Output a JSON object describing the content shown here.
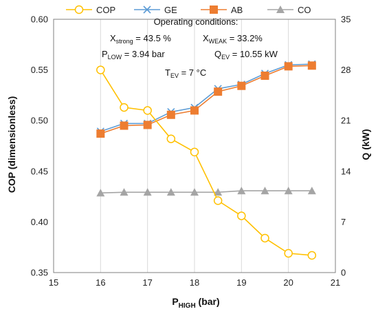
{
  "chart_data": {
    "type": "line",
    "x": [
      16,
      16.5,
      17,
      17.5,
      18,
      18.5,
      19,
      19.5,
      20,
      20.5
    ],
    "xlabel": {
      "main": "P",
      "sub": "HIGH",
      "tail": " (bar)"
    },
    "ylabel_left": "COP (dimensionless)",
    "ylabel_right": "Q (kW)",
    "xlim": [
      15,
      21
    ],
    "xticks": [
      "15",
      "16",
      "17",
      "18",
      "19",
      "20",
      "21"
    ],
    "ylim_left": [
      0.35,
      0.6
    ],
    "yticks_left": [
      "0.35",
      "0.40",
      "0.45",
      "0.50",
      "0.55",
      "0.60"
    ],
    "ylim_right": [
      0,
      35
    ],
    "yticks_right": [
      "0",
      "7",
      "14",
      "21",
      "28",
      "35"
    ],
    "series": [
      {
        "name": "COP",
        "axis": "left",
        "color": "#FFC000",
        "marker": "circle-open",
        "values": [
          0.55,
          0.513,
          0.51,
          0.482,
          0.469,
          0.421,
          0.406,
          0.384,
          0.369,
          0.367
        ]
      },
      {
        "name": "GE",
        "axis": "right",
        "color": "#5B9BD5",
        "marker": "x",
        "values": [
          19.5,
          20.6,
          20.6,
          22.2,
          22.8,
          25.4,
          26.0,
          27.5,
          28.7,
          28.8
        ]
      },
      {
        "name": "AB",
        "axis": "right",
        "color": "#ED7D31",
        "marker": "square",
        "values": [
          19.2,
          20.3,
          20.4,
          21.8,
          22.4,
          25.0,
          25.8,
          27.2,
          28.5,
          28.6
        ]
      },
      {
        "name": "CO",
        "axis": "right",
        "color": "#A5A5A5",
        "marker": "triangle",
        "values": [
          11.0,
          11.1,
          11.1,
          11.1,
          11.1,
          11.1,
          11.3,
          11.3,
          11.3,
          11.3
        ]
      }
    ],
    "grid": "vertical",
    "legend_placement": "top"
  },
  "annotations": {
    "title": "Operating conditions:",
    "xstrong": {
      "main": "X",
      "sub": "strong",
      "tail": " = 43.5 %"
    },
    "xweak": {
      "main": "X",
      "sub": "WEAK",
      "tail": " = 33.2%"
    },
    "plow": {
      "main": "P",
      "sub": "LOW",
      "tail": " = 3.94 bar"
    },
    "qev": {
      "main": "Q",
      "sub": "EV",
      "tail": " = 10.55 kW"
    },
    "tev": {
      "main": "T",
      "sub": "EV",
      "tail": " = 7 °C"
    }
  }
}
